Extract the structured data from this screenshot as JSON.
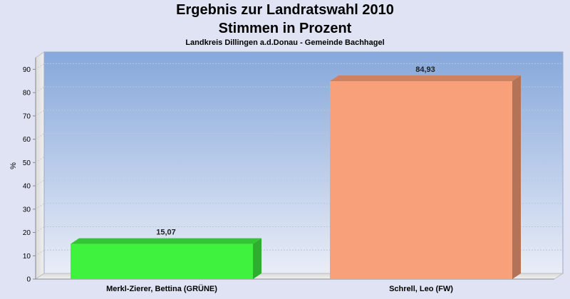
{
  "chart_data": {
    "type": "bar",
    "title": "Ergebnis zur Landratswahl 2010",
    "title_line2": "Stimmen in Prozent",
    "subtitle": "Landkreis Dillingen a.d.Donau - Gemeinde Bachhagel",
    "ylabel": "%",
    "ylim": [
      0,
      95
    ],
    "yticks": [
      0,
      10,
      20,
      30,
      40,
      50,
      60,
      70,
      80,
      90
    ],
    "categories": [
      "Merkl-Zierer, Bettina (GRÜNE)",
      "Schrell, Leo (FW)"
    ],
    "values": [
      15.07,
      84.93
    ],
    "value_labels": [
      "15,07",
      "84,93"
    ],
    "bar_colors": [
      "#3ef23e",
      "#f8a07a"
    ],
    "grid": true
  }
}
